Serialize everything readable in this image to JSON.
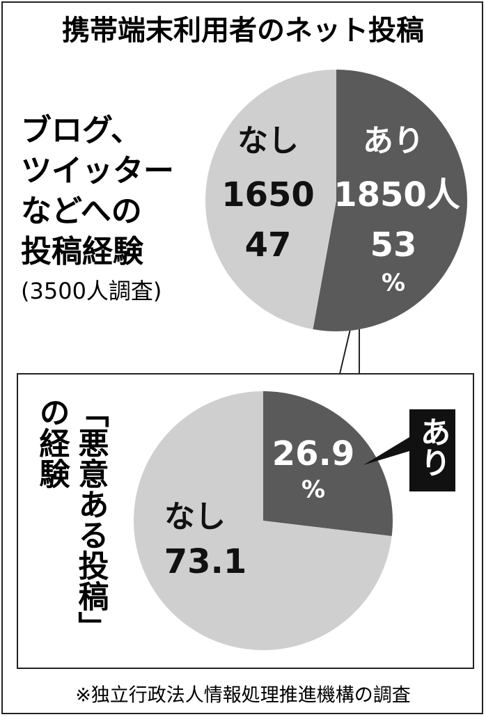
{
  "title": "携帯端末利用者のネット投稿",
  "footnote": "※独立行政法人情報処理推進機構の調査",
  "chart_data": [
    {
      "type": "pie",
      "label_lines": [
        "ブログ、",
        "ツイッター",
        "などへの",
        "投稿経験"
      ],
      "subtitle": "(3500人調査)",
      "categories": [
        "あり",
        "なし"
      ],
      "values": [
        1850,
        1650
      ],
      "value_labels": [
        "1850人",
        "1650"
      ],
      "percents": [
        53,
        47
      ],
      "percent_unit": "%",
      "colors": [
        "#5a5a5a",
        "#cfcfcf"
      ]
    },
    {
      "type": "pie",
      "label_lines": [
        "「悪意ある投稿」",
        "の経験"
      ],
      "categories": [
        "あり",
        "なし"
      ],
      "values": [
        26.9,
        73.1
      ],
      "percent_unit": "%",
      "colors": [
        "#5a5a5a",
        "#cfcfcf"
      ]
    }
  ]
}
